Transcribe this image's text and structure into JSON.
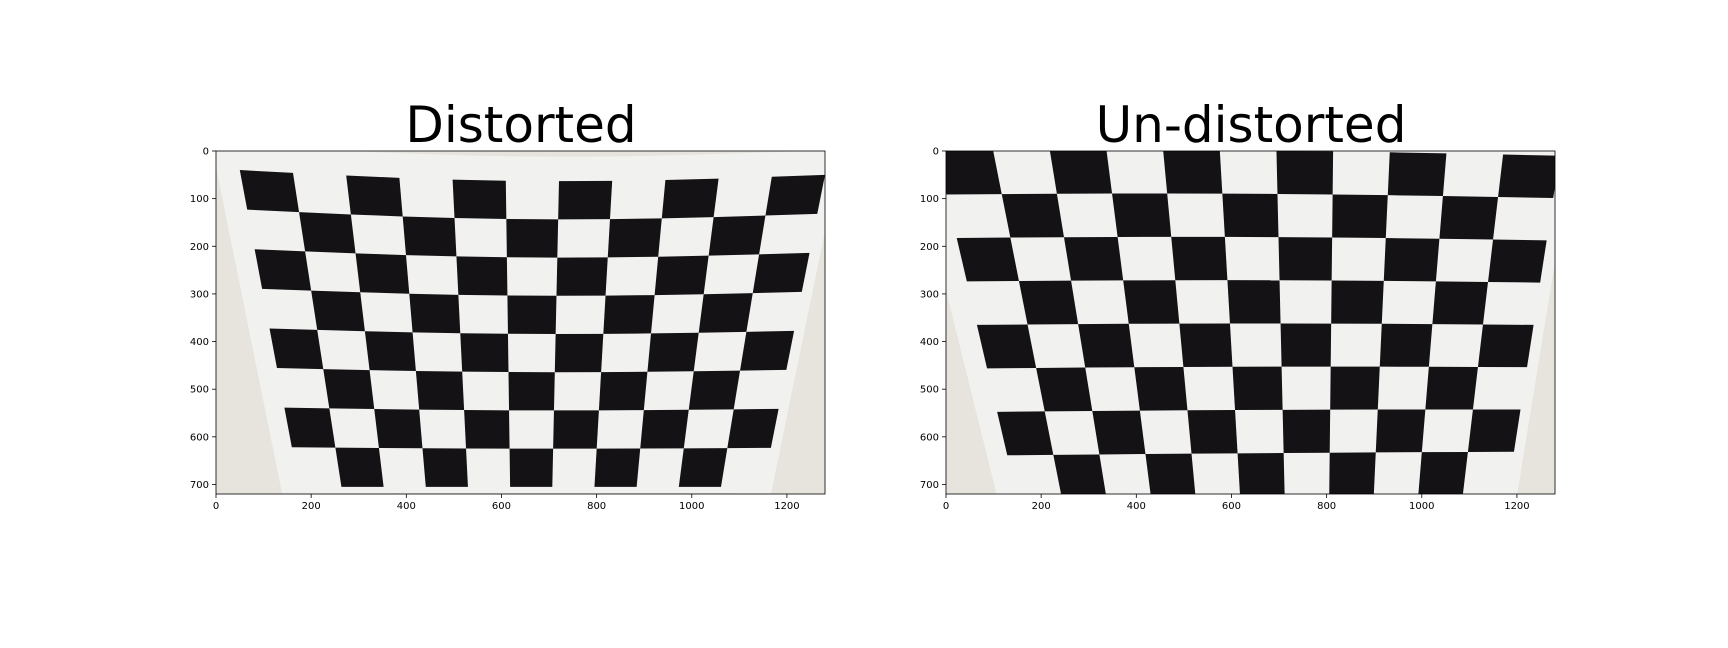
{
  "figure": {
    "panels": [
      {
        "title": "Distorted",
        "x_ticks": [
          "0",
          "200",
          "400",
          "600",
          "800",
          "1000",
          "1200"
        ],
        "y_ticks": [
          "0",
          "100",
          "200",
          "300",
          "400",
          "500",
          "600",
          "700"
        ],
        "x_tick_values": [
          0,
          200,
          400,
          600,
          800,
          1000,
          1200
        ],
        "y_tick_values": [
          0,
          100,
          200,
          300,
          400,
          500,
          600,
          700
        ],
        "xlim": [
          0,
          1280
        ],
        "ylim": [
          720,
          0
        ],
        "image": "chessboard-photo-distorted"
      },
      {
        "title": "Un-distorted",
        "x_ticks": [
          "0",
          "200",
          "400",
          "600",
          "800",
          "1000",
          "1200"
        ],
        "y_ticks": [
          "0",
          "100",
          "200",
          "300",
          "400",
          "500",
          "600",
          "700"
        ],
        "x_tick_values": [
          0,
          200,
          400,
          600,
          800,
          1000,
          1200
        ],
        "y_tick_values": [
          0,
          100,
          200,
          300,
          400,
          500,
          600,
          700
        ],
        "xlim": [
          0,
          1280
        ],
        "ylim": [
          720,
          0
        ],
        "image": "chessboard-photo-undistorted"
      }
    ],
    "colors": {
      "paper": "#f1f1ef",
      "wall": "#e6e4dc",
      "square": "#141214"
    }
  }
}
